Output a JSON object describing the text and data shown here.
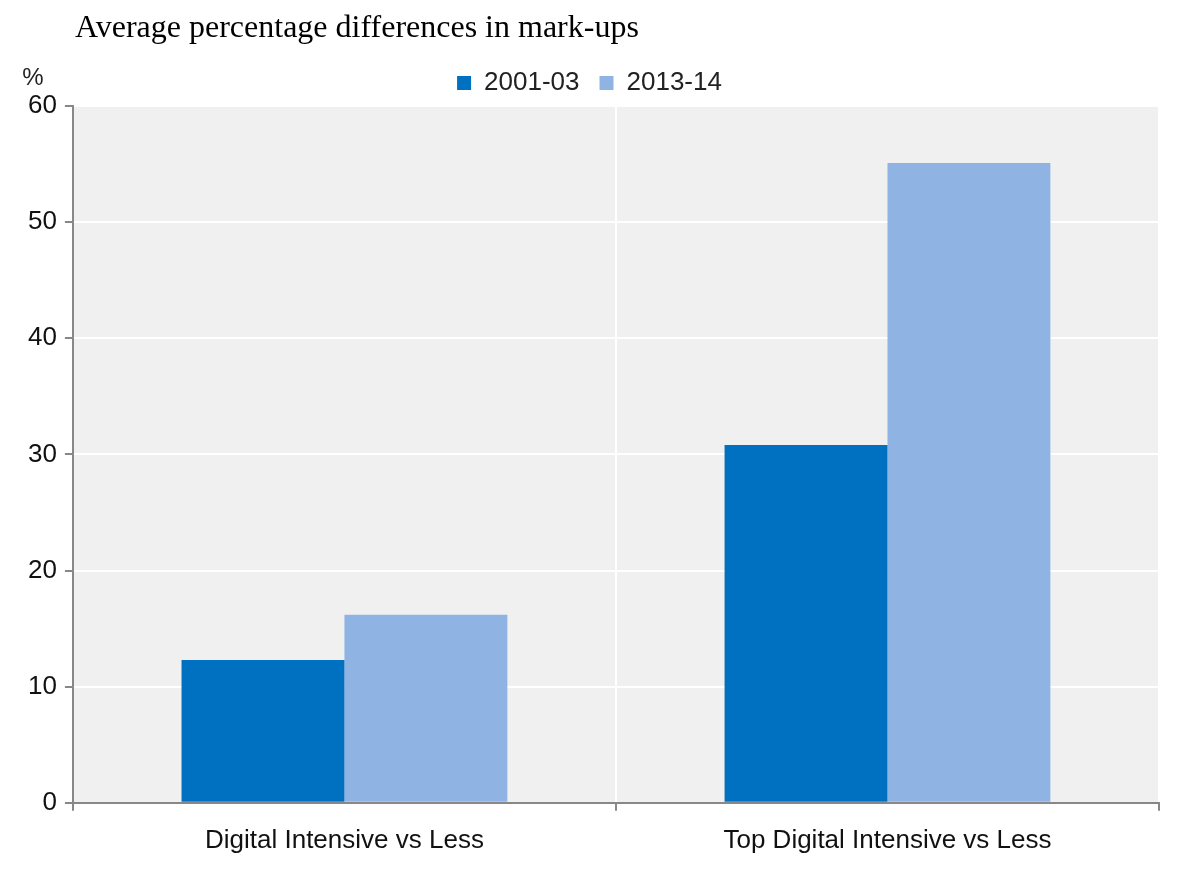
{
  "chart_data": {
    "type": "bar",
    "title": "Average percentage differences in mark-ups",
    "ylabel": "%",
    "categories": [
      "Digital Intensive vs Less",
      "Top Digital Intensive vs Less"
    ],
    "series": [
      {
        "name": "2001-03",
        "color": "#0070c0",
        "values": [
          12.3,
          30.8
        ]
      },
      {
        "name": "2013-14",
        "color": "#8fb4e3",
        "values": [
          16.2,
          55.1
        ]
      }
    ],
    "ylim": [
      0,
      60
    ],
    "yticks": [
      0,
      10,
      20,
      30,
      40,
      50,
      60
    ],
    "grid": true,
    "legend": "top"
  }
}
